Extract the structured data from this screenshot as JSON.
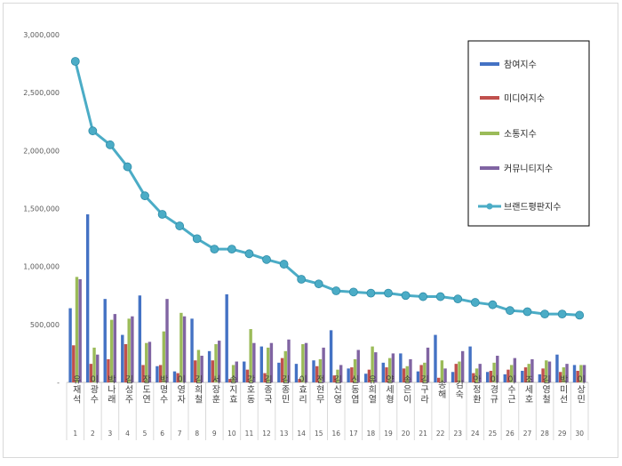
{
  "chart_data": {
    "type": "bar",
    "ylim": [
      0,
      3000000
    ],
    "yticks": [
      "3,000,000",
      "2,500,000",
      "2,000,000",
      "1,500,000",
      "1,000,000",
      "500,000",
      "-"
    ],
    "grid": false,
    "legend_position": "right",
    "categories": [
      "유재석",
      "이광수",
      "박나래",
      "김성주",
      "장도연",
      "박명수",
      "이영자",
      "김희철",
      "서장훈",
      "송지효",
      "강호동",
      "김종국",
      "김종민",
      "이효리",
      "전현무",
      "김신영",
      "신동엽",
      "유희열",
      "양세형",
      "송은이",
      "김구라",
      "송해",
      "김숙",
      "안정환",
      "이경규",
      "이수근",
      "조세호",
      "김영철",
      "박미선",
      "이상민"
    ],
    "ranks": [
      "1",
      "2",
      "3",
      "4",
      "5",
      "6",
      "7",
      "8",
      "9",
      "10",
      "11",
      "12",
      "13",
      "14",
      "15",
      "16",
      "17",
      "18",
      "19",
      "20",
      "21",
      "22",
      "23",
      "24",
      "25",
      "26",
      "27",
      "28",
      "29",
      "30"
    ],
    "series": [
      {
        "name": "참여지수",
        "kind": "bar",
        "color": "#4472C4",
        "values": [
          640000,
          1450000,
          720000,
          410000,
          750000,
          140000,
          95000,
          550000,
          270000,
          760000,
          180000,
          310000,
          170000,
          160000,
          190000,
          450000,
          120000,
          75000,
          170000,
          250000,
          95000,
          410000,
          90000,
          310000,
          90000,
          70000,
          100000,
          70000,
          240000,
          150000
        ]
      },
      {
        "name": "미디어지수",
        "kind": "bar",
        "color": "#C0504D",
        "values": [
          320000,
          160000,
          200000,
          330000,
          150000,
          150000,
          80000,
          190000,
          190000,
          30000,
          110000,
          80000,
          210000,
          30000,
          140000,
          60000,
          130000,
          110000,
          130000,
          120000,
          150000,
          40000,
          160000,
          80000,
          100000,
          110000,
          130000,
          120000,
          90000,
          100000
        ]
      },
      {
        "name": "소통지수",
        "kind": "bar",
        "color": "#9BBB59",
        "values": [
          910000,
          300000,
          540000,
          550000,
          340000,
          440000,
          600000,
          280000,
          330000,
          150000,
          460000,
          300000,
          270000,
          330000,
          200000,
          110000,
          200000,
          310000,
          210000,
          140000,
          170000,
          190000,
          180000,
          120000,
          170000,
          150000,
          160000,
          190000,
          130000,
          150000
        ]
      },
      {
        "name": "커뮤니티지수",
        "kind": "bar",
        "color": "#8064A2",
        "values": [
          890000,
          240000,
          590000,
          570000,
          350000,
          720000,
          570000,
          230000,
          360000,
          180000,
          340000,
          340000,
          370000,
          340000,
          300000,
          150000,
          280000,
          260000,
          250000,
          200000,
          300000,
          120000,
          270000,
          160000,
          230000,
          210000,
          200000,
          180000,
          160000,
          150000
        ]
      },
      {
        "name": "브랜드평판지수",
        "kind": "line",
        "color": "#4BACC6",
        "values": [
          2770000,
          2170000,
          2050000,
          1860000,
          1610000,
          1450000,
          1350000,
          1240000,
          1150000,
          1150000,
          1110000,
          1060000,
          1020000,
          890000,
          850000,
          790000,
          780000,
          770000,
          770000,
          750000,
          740000,
          740000,
          720000,
          690000,
          670000,
          620000,
          610000,
          590000,
          590000,
          580000
        ]
      }
    ]
  }
}
